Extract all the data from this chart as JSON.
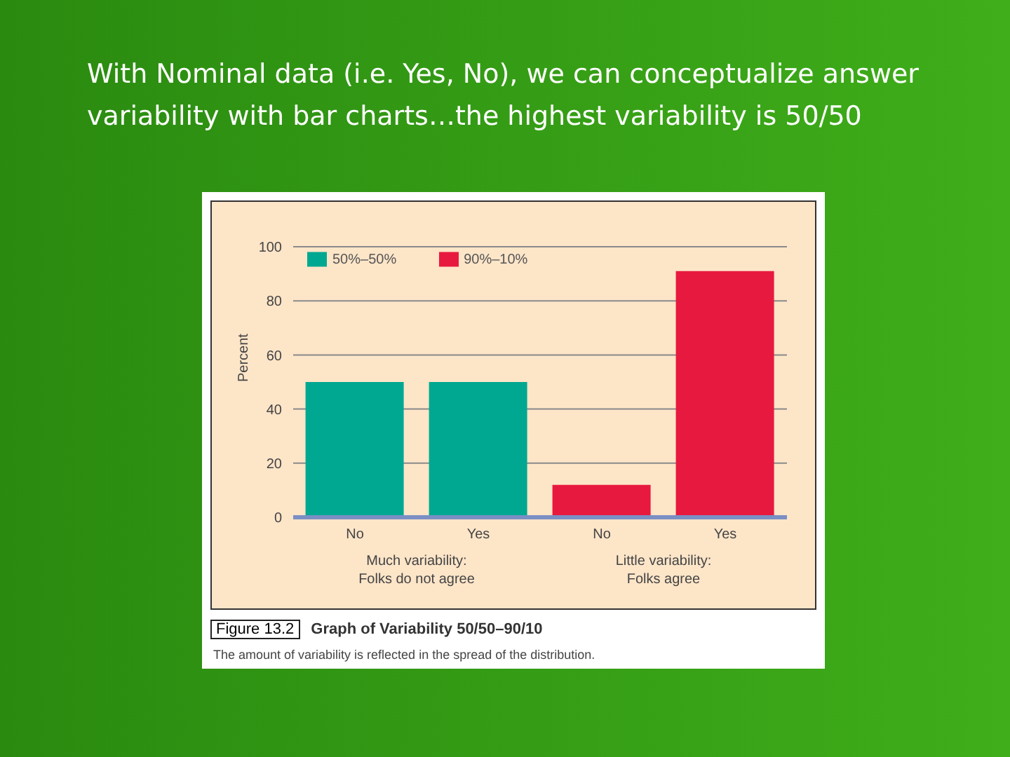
{
  "chart_data": {
    "type": "bar",
    "title": "With Nominal data (i.e. Yes, No), we can conceptualize answer variability with bar charts…the highest variability is 50/50",
    "ylabel": "Percent",
    "categories": [
      "No",
      "Yes",
      "No",
      "Yes"
    ],
    "series": [
      {
        "name": "50%–50%",
        "color": "#00a891",
        "values": [
          50,
          50,
          null,
          null
        ]
      },
      {
        "name": "90%–10%",
        "color": "#e8193f",
        "values": [
          null,
          null,
          12,
          91
        ]
      }
    ],
    "stacked": true,
    "ylim": [
      0,
      100
    ],
    "yticks": [
      0,
      20,
      40,
      60,
      80,
      100
    ],
    "grid": "y",
    "legend": "top left",
    "annotations": [
      "Much variability:\nFolks do not agree",
      "Little variability:\nFolks agree",
      "Figure 13.2",
      "Graph of Variability 50/50–90/10",
      "The amount of variability is reflected in the spread of the distribution."
    ]
  }
}
